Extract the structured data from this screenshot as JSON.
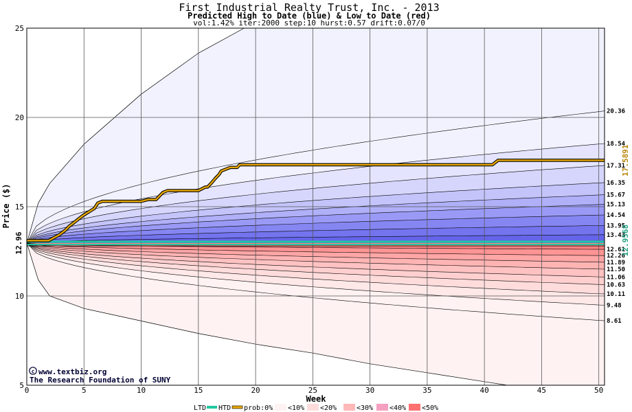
{
  "chart_data": {
    "type": "area",
    "title": "First Industrial Realty Trust, Inc. - 2013",
    "subtitle": "Predicted High to Date (blue) &  Low to Date (red)",
    "params": "vol:1.42% iter:2000 step:10 hurst:0.57 drift:0.07/0",
    "xlabel": "Week",
    "ylabel": "Price ($)",
    "xlim": [
      0,
      50.5
    ],
    "ylim": [
      5,
      25
    ],
    "x_ticks": [
      0,
      5,
      10,
      15,
      20,
      25,
      30,
      35,
      40,
      45,
      50
    ],
    "y_ticks": [
      5,
      10,
      15,
      20,
      25
    ],
    "grid": true,
    "start_price": 12.96,
    "start_price_label": "12.96",
    "low_to_date_price": 12.9568,
    "low_to_date_label": "12.9568",
    "high_to_date_price": 17.5891,
    "high_to_date_label": "17.5891",
    "blue_band_end_values": [
      20.36,
      18.54,
      17.31,
      16.35,
      15.67,
      15.13,
      14.54,
      13.95,
      13.43
    ],
    "red_band_end_values": [
      12.61,
      12.26,
      11.89,
      11.5,
      11.06,
      10.63,
      10.11,
      9.48,
      8.61
    ],
    "end_value_labels": [
      "20.36",
      "18.54",
      "17.31",
      "16.35",
      "15.67",
      "15.13",
      "14.54",
      "13.95",
      "13.43",
      "12.61",
      "12.26",
      "11.89",
      "11.50",
      "11.06",
      "10.63",
      "10.11",
      "9.48",
      "8.61"
    ],
    "outer_high_envelope": [
      [
        0,
        12.96
      ],
      [
        1,
        15.2
      ],
      [
        2,
        16.3
      ],
      [
        5,
        18.5
      ],
      [
        10,
        21.3
      ],
      [
        15,
        23.6
      ],
      [
        19,
        25.0
      ]
    ],
    "outer_low_envelope": [
      [
        0,
        12.96
      ],
      [
        1,
        10.9
      ],
      [
        2,
        10.0
      ],
      [
        5,
        9.3
      ],
      [
        10,
        8.6
      ],
      [
        15,
        7.9
      ],
      [
        20,
        7.3
      ],
      [
        25,
        6.8
      ],
      [
        30,
        6.2
      ],
      [
        35,
        5.7
      ],
      [
        40,
        5.2
      ],
      [
        42,
        5.0
      ]
    ],
    "series": [
      {
        "name": "HTD",
        "color": "#20c8a0",
        "x": [
          0,
          50.5
        ],
        "values": [
          12.96,
          12.96
        ]
      },
      {
        "name": "prob:0%",
        "color": "#e8a800",
        "x": [
          0,
          1.9,
          2.2,
          2.9,
          3.1,
          3.4,
          3.7,
          4.1,
          4.5,
          4.9,
          5.4,
          5.9,
          6.2,
          6.6,
          7.3,
          8.0,
          9.0,
          10.0,
          10.6,
          11.3,
          11.6,
          11.9,
          12.3,
          13.0,
          14.0,
          15.0,
          15.6,
          15.8,
          16.1,
          16.5,
          16.8,
          17.0,
          17.4,
          17.8,
          18.4,
          18.6,
          19.0,
          20.0,
          25.0,
          30.0,
          35.0,
          40.0,
          40.7,
          41.0,
          41.2,
          42.0,
          45.0,
          50.5
        ],
        "values": [
          13.1,
          13.1,
          13.2,
          13.45,
          13.55,
          13.7,
          13.9,
          14.1,
          14.3,
          14.5,
          14.7,
          14.9,
          15.2,
          15.3,
          15.3,
          15.3,
          15.3,
          15.3,
          15.4,
          15.4,
          15.6,
          15.8,
          15.9,
          15.9,
          15.9,
          15.9,
          16.1,
          16.1,
          16.3,
          16.6,
          16.8,
          17.0,
          17.1,
          17.2,
          17.2,
          17.35,
          17.35,
          17.35,
          17.35,
          17.35,
          17.35,
          17.35,
          17.35,
          17.5,
          17.6,
          17.6,
          17.6,
          17.6
        ]
      }
    ],
    "credit_lines": [
      "www.textbiz.org",
      "The Research Foundation of SUNY"
    ],
    "legend": [
      "LTD",
      "HTD",
      "prob:0%",
      "<10%",
      "<20%",
      "<30%",
      "<40%",
      "<50%"
    ],
    "colors": {
      "outer_blue": "#f2f2ff",
      "outer_red": "#fff2f2",
      "blue_bands": [
        "#f2f2ff",
        "#e4e4fe",
        "#d6d6fd",
        "#c4c4fb",
        "#b0b0f9",
        "#9a9af6",
        "#8686f2",
        "#7474ee",
        "#6565ea"
      ],
      "red_bands": [
        "#ff8080",
        "#ff9494",
        "#ffa6a6",
        "#ffb4b4",
        "#ffc2c2",
        "#ffcfcf",
        "#ffdcdc",
        "#ffe8e8",
        "#fff2f2"
      ],
      "ltd_color": "#20c8a0",
      "htd_color": "#20c8a0",
      "prob_color": "#e8a800",
      "credit_color": "#000033"
    }
  }
}
